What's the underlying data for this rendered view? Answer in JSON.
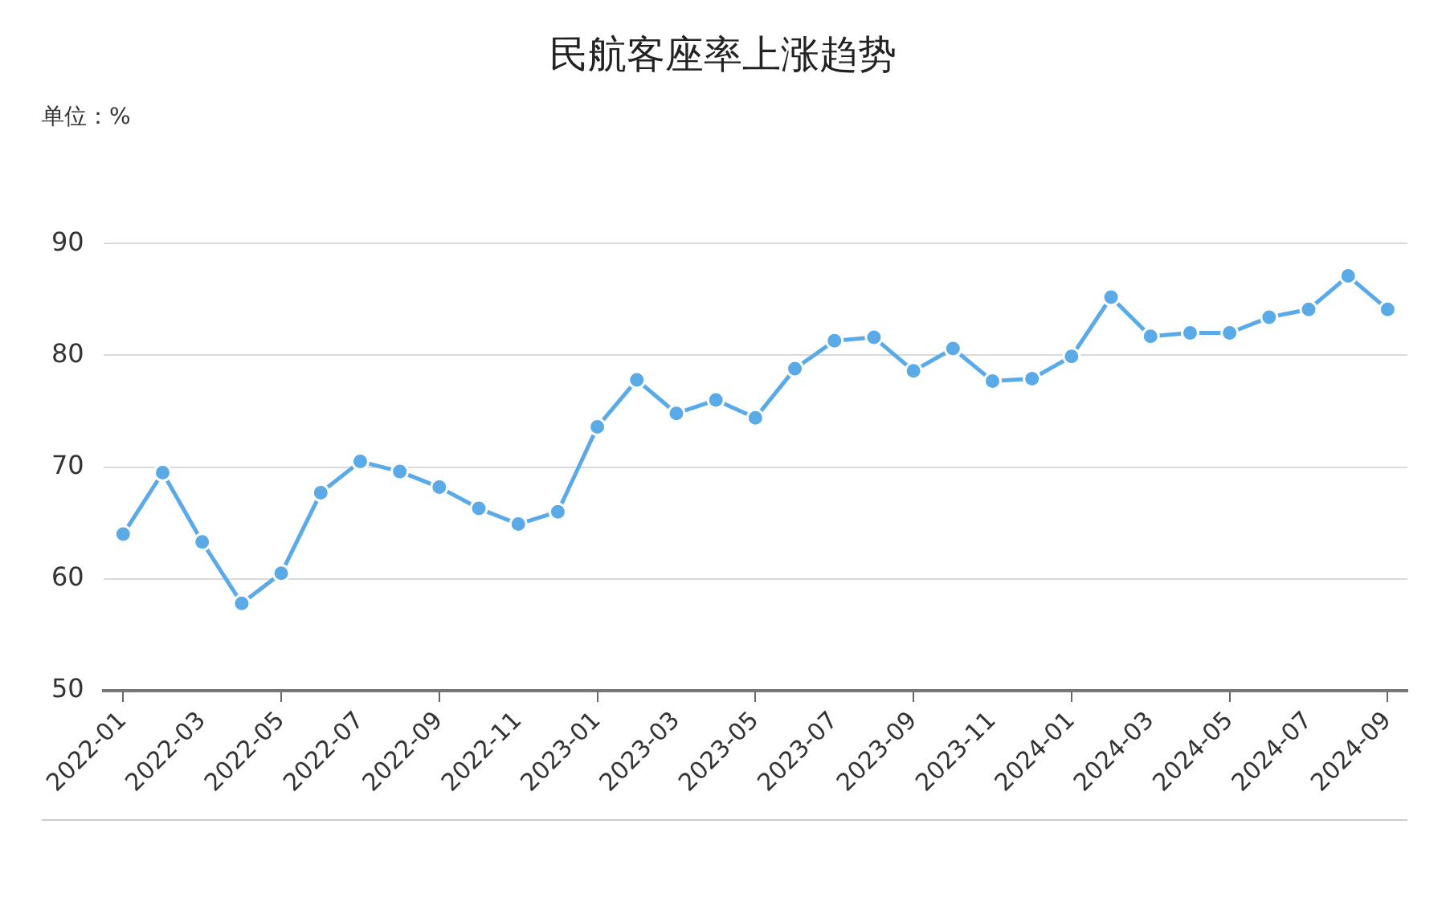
{
  "chart_data": {
    "type": "line",
    "title": "民航客座率上涨趋势",
    "ylabel": "单位：%",
    "categories": [
      "2022-01",
      null,
      "2022-03",
      null,
      "2022-05",
      null,
      "2022-07",
      null,
      "2022-09",
      null,
      "2022-11",
      null,
      "2023-01",
      null,
      "2023-03",
      null,
      "2023-05",
      null,
      "2023-07",
      null,
      "2023-09",
      null,
      "2023-11",
      null,
      "2024-01",
      null,
      "2024-03",
      null,
      "2024-05",
      null,
      "2024-07",
      null,
      "2024-09"
    ],
    "series": [
      {
        "color": "#5aaae8",
        "values": [
          64.0,
          69.5,
          63.3,
          57.8,
          60.5,
          67.7,
          70.5,
          69.6,
          68.2,
          66.3,
          64.9,
          66.0,
          73.6,
          77.8,
          74.8,
          76.0,
          74.4,
          78.8,
          81.3,
          81.6,
          78.6,
          80.6,
          77.7,
          77.9,
          79.9,
          85.2,
          81.7,
          82.0,
          82.0,
          83.4,
          84.1,
          87.1,
          84.1
        ]
      }
    ],
    "ylim": [
      50,
      90
    ],
    "yticks": [
      50,
      60,
      70,
      80,
      90
    ],
    "grid": "y",
    "legend": false,
    "marker": "circle",
    "line_style": "solid"
  }
}
